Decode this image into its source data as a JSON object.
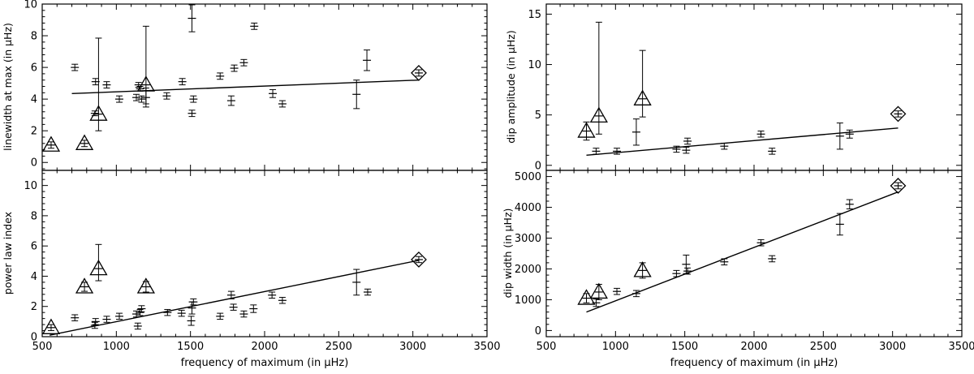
{
  "chart_data": [
    {
      "id": "linewidth",
      "type": "scatter",
      "title": "",
      "xlabel": "",
      "ylabel": "linewidth at max (in μHz)",
      "xlim": [
        500,
        3500
      ],
      "ylim": [
        -0.5,
        10
      ],
      "xticks": [
        500,
        1000,
        1500,
        2000,
        2500,
        3000,
        3500
      ],
      "xtick_labels_shown": false,
      "yticks": [
        0,
        2,
        4,
        6,
        8,
        10
      ],
      "ytick_labels": [
        "0",
        "2",
        "4",
        "6",
        "8",
        "10"
      ],
      "fit_line": [
        [
          700,
          4.35
        ],
        [
          3040,
          5.2
        ]
      ],
      "points": [
        {
          "x": 720,
          "y": 6.0,
          "ey": 0.2
        },
        {
          "x": 855,
          "y": 3.1,
          "ey": 0.15
        },
        {
          "x": 860,
          "y": 5.1,
          "ey": 0.2
        },
        {
          "x": 935,
          "y": 4.9,
          "ey": 0.2
        },
        {
          "x": 1020,
          "y": 4.0,
          "ey": 0.2
        },
        {
          "x": 1135,
          "y": 4.1,
          "ey": 0.2
        },
        {
          "x": 1150,
          "y": 4.9,
          "ey": 0.15
        },
        {
          "x": 1160,
          "y": 4.65,
          "ey": 0.15
        },
        {
          "x": 1170,
          "y": 4.0,
          "ey": 0.2
        },
        {
          "x": 1200,
          "y": 4.1,
          "ey": 0.6
        },
        {
          "x": 1340,
          "y": 4.2,
          "ey": 0.2
        },
        {
          "x": 1445,
          "y": 5.1,
          "ey": 0.2
        },
        {
          "x": 1510,
          "y": 9.1,
          "ey": 0.85
        },
        {
          "x": 1510,
          "y": 3.1,
          "ey": 0.2
        },
        {
          "x": 1520,
          "y": 4.0,
          "ey": 0.2
        },
        {
          "x": 1700,
          "y": 5.45,
          "ey": 0.2
        },
        {
          "x": 1775,
          "y": 3.9,
          "ey": 0.3
        },
        {
          "x": 1795,
          "y": 5.95,
          "ey": 0.2
        },
        {
          "x": 1860,
          "y": 6.3,
          "ey": 0.2
        },
        {
          "x": 1930,
          "y": 8.6,
          "ey": 0.2
        },
        {
          "x": 2055,
          "y": 4.35,
          "ey": 0.25
        },
        {
          "x": 2120,
          "y": 3.7,
          "ey": 0.2
        },
        {
          "x": 2620,
          "y": 4.3,
          "ey": 0.9
        },
        {
          "x": 2690,
          "y": 6.45,
          "ey": 0.65
        }
      ],
      "triangles": [
        {
          "x": 560,
          "y": 1.1,
          "ey": 0.2
        },
        {
          "x": 785,
          "y": 1.2,
          "ey": 0.2
        },
        {
          "x": 880,
          "y": 3.05,
          "ey_low": 1.05,
          "ey_high": 4.8
        },
        {
          "x": 1200,
          "y": 4.9,
          "ey_low": 1.2,
          "ey_high": 3.7
        }
      ],
      "diamonds": [
        {
          "x": 3040,
          "y": 5.65,
          "ey": 0.2
        }
      ]
    },
    {
      "id": "powerlaw",
      "type": "scatter",
      "title": "",
      "xlabel": "frequency of maximum (in μHz)",
      "ylabel": "power law index",
      "xlim": [
        500,
        3500
      ],
      "ylim": [
        0,
        11
      ],
      "xticks": [
        500,
        1000,
        1500,
        2000,
        2500,
        3000,
        3500
      ],
      "xtick_labels": [
        "500",
        "1000",
        "1500",
        "2000",
        "2500",
        "3000",
        "3500"
      ],
      "yticks": [
        0,
        2,
        4,
        6,
        8,
        10
      ],
      "ytick_labels": [
        "0",
        "2",
        "4",
        "6",
        "8",
        "10"
      ],
      "fit_line": [
        [
          550,
          0.1
        ],
        [
          3040,
          5.05
        ]
      ],
      "points": [
        {
          "x": 720,
          "y": 1.25,
          "ey": 0.2
        },
        {
          "x": 855,
          "y": 0.75,
          "ey": 0.2
        },
        {
          "x": 860,
          "y": 1.0,
          "ey": 0.2
        },
        {
          "x": 935,
          "y": 1.15,
          "ey": 0.2
        },
        {
          "x": 1020,
          "y": 1.35,
          "ey": 0.2
        },
        {
          "x": 1135,
          "y": 1.5,
          "ey": 0.2
        },
        {
          "x": 1145,
          "y": 0.7,
          "ey": 0.2
        },
        {
          "x": 1160,
          "y": 1.6,
          "ey": 0.2
        },
        {
          "x": 1170,
          "y": 1.85,
          "ey": 0.2
        },
        {
          "x": 1345,
          "y": 1.6,
          "ey": 0.2
        },
        {
          "x": 1440,
          "y": 1.55,
          "ey": 0.2
        },
        {
          "x": 1505,
          "y": 1.05,
          "ey": 0.3
        },
        {
          "x": 1510,
          "y": 1.9,
          "ey": 0.4
        },
        {
          "x": 1520,
          "y": 2.3,
          "ey": 0.2
        },
        {
          "x": 1700,
          "y": 1.35,
          "ey": 0.2
        },
        {
          "x": 1775,
          "y": 2.75,
          "ey": 0.25
        },
        {
          "x": 1790,
          "y": 1.95,
          "ey": 0.2
        },
        {
          "x": 1860,
          "y": 1.5,
          "ey": 0.2
        },
        {
          "x": 1925,
          "y": 1.85,
          "ey": 0.25
        },
        {
          "x": 2050,
          "y": 2.75,
          "ey": 0.2
        },
        {
          "x": 2120,
          "y": 2.4,
          "ey": 0.2
        },
        {
          "x": 2620,
          "y": 3.6,
          "ey": 0.85
        },
        {
          "x": 2695,
          "y": 2.95,
          "ey": 0.2
        }
      ],
      "triangles": [
        {
          "x": 560,
          "y": 0.6,
          "ey": 0.2
        },
        {
          "x": 785,
          "y": 3.3,
          "ey": 0.3
        },
        {
          "x": 880,
          "y": 4.5,
          "ey_low": 0.8,
          "ey_high": 1.6
        },
        {
          "x": 1200,
          "y": 3.3,
          "ey": 0.35
        }
      ],
      "diamonds": [
        {
          "x": 3040,
          "y": 5.1,
          "ey": 0.2
        }
      ]
    },
    {
      "id": "dipamp",
      "type": "scatter",
      "title": "",
      "xlabel": "",
      "ylabel": "dip amplitude (in μHz)",
      "xlim": [
        500,
        3500
      ],
      "ylim": [
        -0.5,
        16
      ],
      "xticks": [
        500,
        1000,
        1500,
        2000,
        2500,
        3000,
        3500
      ],
      "xtick_labels_shown": false,
      "yticks": [
        0,
        5,
        10,
        15
      ],
      "ytick_labels": [
        "0",
        "5",
        "10",
        "15"
      ],
      "fit_line": [
        [
          790,
          1.0
        ],
        [
          3040,
          3.7
        ]
      ],
      "points": [
        {
          "x": 860,
          "y": 1.4,
          "ey": 0.3
        },
        {
          "x": 1010,
          "y": 1.4,
          "ey": 0.3
        },
        {
          "x": 1150,
          "y": 3.3,
          "ey": 1.3
        },
        {
          "x": 1440,
          "y": 1.6,
          "ey": 0.3
        },
        {
          "x": 1510,
          "y": 1.5,
          "ey": 0.3
        },
        {
          "x": 1520,
          "y": 2.4,
          "ey": 0.3
        },
        {
          "x": 1785,
          "y": 1.9,
          "ey": 0.3
        },
        {
          "x": 2050,
          "y": 3.1,
          "ey": 0.3
        },
        {
          "x": 2130,
          "y": 1.4,
          "ey": 0.3
        },
        {
          "x": 2620,
          "y": 2.9,
          "ey": 1.3
        },
        {
          "x": 2690,
          "y": 3.1,
          "ey": 0.4
        }
      ],
      "triangles": [
        {
          "x": 790,
          "y": 3.4,
          "ey": 0.9
        },
        {
          "x": 880,
          "y": 4.9,
          "ey_low": 1.8,
          "ey_high": 9.3
        },
        {
          "x": 1195,
          "y": 6.6,
          "ey_low": 1.8,
          "ey_high": 4.8
        }
      ],
      "diamonds": [
        {
          "x": 3040,
          "y": 5.1,
          "ey": 0.3
        }
      ]
    },
    {
      "id": "dipwidth",
      "type": "scatter",
      "title": "",
      "xlabel": "frequency of maximum (in μHz)",
      "ylabel": "dip width (in μHz)",
      "xlim": [
        500,
        3500
      ],
      "ylim": [
        -200,
        5200
      ],
      "xticks": [
        500,
        1000,
        1500,
        2000,
        2500,
        3000,
        3500
      ],
      "xtick_labels": [
        "500",
        "1000",
        "1500",
        "2000",
        "2500",
        "3000",
        "3500"
      ],
      "yticks": [
        0,
        1000,
        2000,
        3000,
        4000,
        5000
      ],
      "ytick_labels": [
        "0",
        "1000",
        "2000",
        "3000",
        "4000",
        "5000"
      ],
      "fit_line": [
        [
          790,
          600
        ],
        [
          3040,
          4500
        ]
      ],
      "points": [
        {
          "x": 860,
          "y": 900,
          "ey": 120
        },
        {
          "x": 1010,
          "y": 1270,
          "ey": 100
        },
        {
          "x": 1150,
          "y": 1200,
          "ey": 100
        },
        {
          "x": 1440,
          "y": 1850,
          "ey": 100
        },
        {
          "x": 1510,
          "y": 2150,
          "ey": 300
        },
        {
          "x": 1520,
          "y": 1930,
          "ey": 100
        },
        {
          "x": 1785,
          "y": 2230,
          "ey": 100
        },
        {
          "x": 2050,
          "y": 2850,
          "ey": 100
        },
        {
          "x": 2130,
          "y": 2330,
          "ey": 100
        },
        {
          "x": 2620,
          "y": 3450,
          "ey": 350
        },
        {
          "x": 2690,
          "y": 4100,
          "ey": 150
        }
      ],
      "triangles": [
        {
          "x": 790,
          "y": 1050,
          "ey": 150
        },
        {
          "x": 880,
          "y": 1250,
          "ey": 250
        },
        {
          "x": 1195,
          "y": 1950,
          "ey": 250
        }
      ],
      "diamonds": [
        {
          "x": 3040,
          "y": 4700,
          "ey": 100
        }
      ]
    }
  ]
}
